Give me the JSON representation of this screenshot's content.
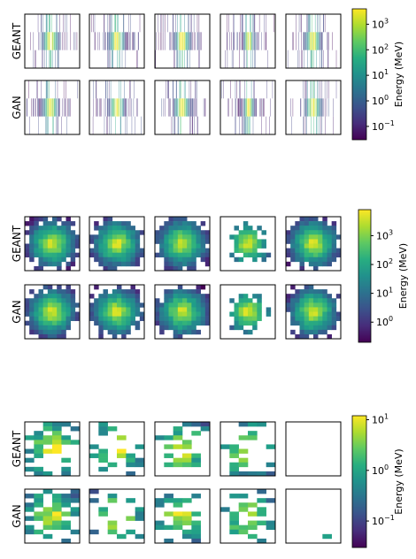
{
  "chart_data": [
    {
      "type": "heatmap",
      "rows": [
        "GEANT",
        "GAN"
      ],
      "columns": 5,
      "layer_grid": "3x96",
      "colorbar": {
        "label": "Energy (MeV)",
        "scale": "log",
        "colormap": "viridis",
        "range": [
          0.03,
          4000
        ],
        "ticks": [
          {
            "value": 0.1,
            "base": "10",
            "exp": "−1"
          },
          {
            "value": 1,
            "base": "10",
            "exp": "0"
          },
          {
            "value": 10,
            "base": "10",
            "exp": "1"
          },
          {
            "value": 100,
            "base": "10",
            "exp": "2"
          },
          {
            "value": 1000,
            "base": "10",
            "exp": "3"
          }
        ]
      }
    },
    {
      "type": "heatmap",
      "rows": [
        "GEANT",
        "GAN"
      ],
      "columns": 5,
      "layer_grid": "12x12",
      "colorbar": {
        "label": "Energy (MeV)",
        "scale": "log",
        "colormap": "viridis",
        "range": [
          0.2,
          8000
        ],
        "ticks": [
          {
            "value": 1,
            "base": "10",
            "exp": "0"
          },
          {
            "value": 10,
            "base": "10",
            "exp": "1"
          },
          {
            "value": 100,
            "base": "10",
            "exp": "2"
          },
          {
            "value": 1000,
            "base": "10",
            "exp": "3"
          }
        ]
      }
    },
    {
      "type": "heatmap",
      "rows": [
        "GEANT",
        "GAN"
      ],
      "columns": 5,
      "layer_grid": "12x6",
      "colorbar": {
        "label": "Energy (MeV)",
        "scale": "log",
        "colormap": "viridis",
        "range": [
          0.03,
          12
        ],
        "ticks": [
          {
            "value": 0.1,
            "base": "10",
            "exp": "−1"
          },
          {
            "value": 1,
            "base": "10",
            "exp": "0"
          },
          {
            "value": 10,
            "base": "10",
            "exp": "1"
          }
        ]
      }
    }
  ]
}
